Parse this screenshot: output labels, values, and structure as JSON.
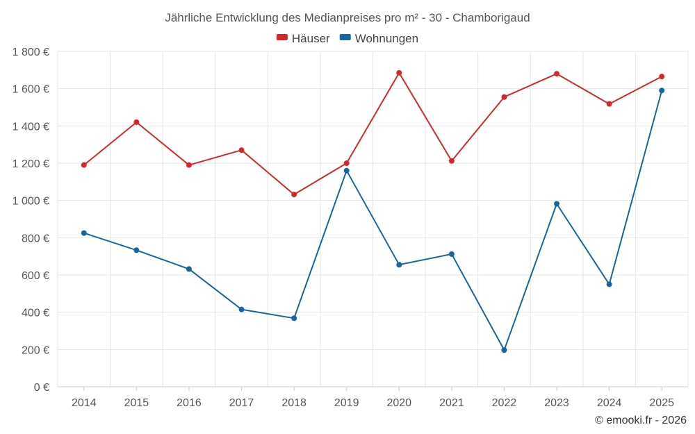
{
  "chart_data": {
    "type": "line",
    "title": "Jährliche Entwicklung des Medianpreises pro m² - 30 - Chamborigaud",
    "categories": [
      "2014",
      "2015",
      "2016",
      "2017",
      "2018",
      "2019",
      "2020",
      "2021",
      "2022",
      "2023",
      "2024",
      "2025"
    ],
    "series": [
      {
        "name": "Häuser",
        "color": "#d62728",
        "values": [
          1190,
          1420,
          1190,
          1270,
          1032,
          1200,
          1685,
          1212,
          1555,
          1680,
          1518,
          1665
        ]
      },
      {
        "name": "Wohnungen",
        "color": "#1565a0",
        "values": [
          825,
          733,
          632,
          415,
          368,
          1160,
          655,
          712,
          197,
          982,
          550,
          1590
        ]
      }
    ],
    "ylim": [
      0,
      1800
    ],
    "yticks": [
      0,
      200,
      400,
      600,
      800,
      1000,
      1200,
      1400,
      1600,
      1800
    ],
    "ytick_labels": [
      "0 €",
      "200 €",
      "400 €",
      "600 €",
      "800 €",
      "1 000 €",
      "1 200 €",
      "1 400 €",
      "1 600 €",
      "1 800 €"
    ],
    "grid": true,
    "legend": "top-center",
    "xlabel": "",
    "ylabel": ""
  },
  "credit": "© emooki.fr - 2026"
}
